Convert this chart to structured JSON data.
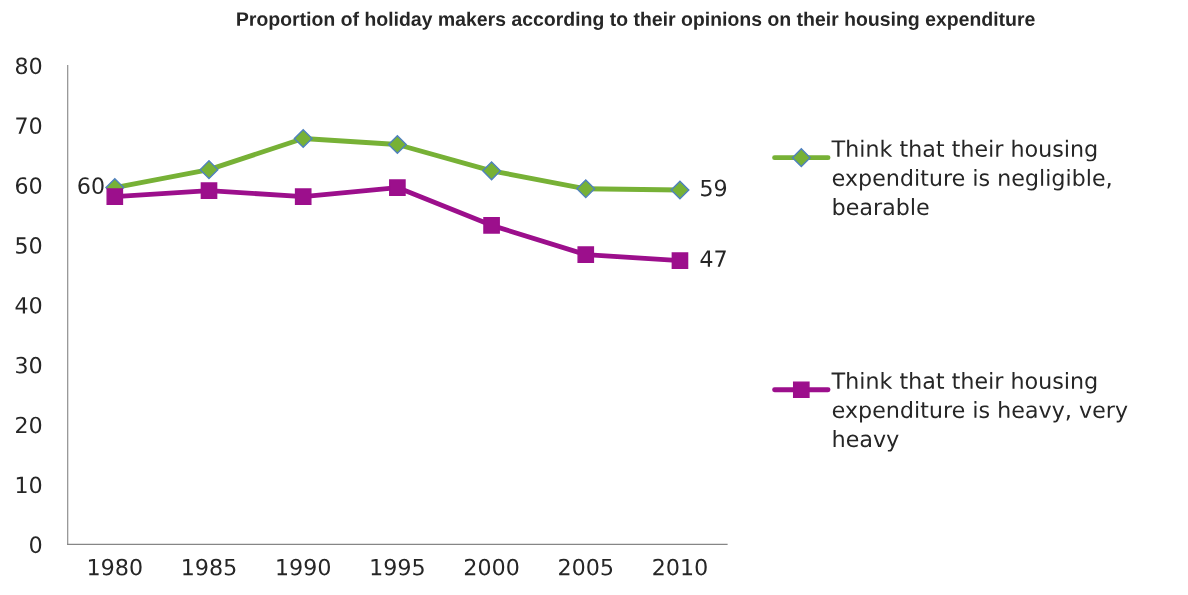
{
  "chart_data": {
    "type": "line",
    "title": "Proportion of holiday makers according to their opinions on their housing expenditure",
    "categories": [
      "1980",
      "1985",
      "1990",
      "1995",
      "2000",
      "2005",
      "2010"
    ],
    "series": [
      {
        "name": "Think that their housing expenditure is negligible, bearable",
        "color": "#77b136",
        "marker": "diamond",
        "values": [
          59.6,
          62.6,
          67.8,
          66.8,
          62.4,
          59.4,
          59.2
        ],
        "value_labels": [
          "60",
          null,
          null,
          null,
          null,
          null,
          "59"
        ]
      },
      {
        "name": "Think that their housing expenditure is heavy, very heavy",
        "color": "#9c0f8c",
        "marker": "square",
        "values": [
          58.1,
          59.1,
          58.1,
          59.6,
          53.3,
          48.4,
          47.4
        ],
        "value_labels": [
          null,
          null,
          null,
          null,
          null,
          null,
          "47"
        ]
      }
    ],
    "ylim": [
      0,
      80
    ],
    "yticks": [
      0,
      10,
      20,
      30,
      40,
      50,
      60,
      70,
      80
    ],
    "grid": false,
    "legend": "right"
  }
}
